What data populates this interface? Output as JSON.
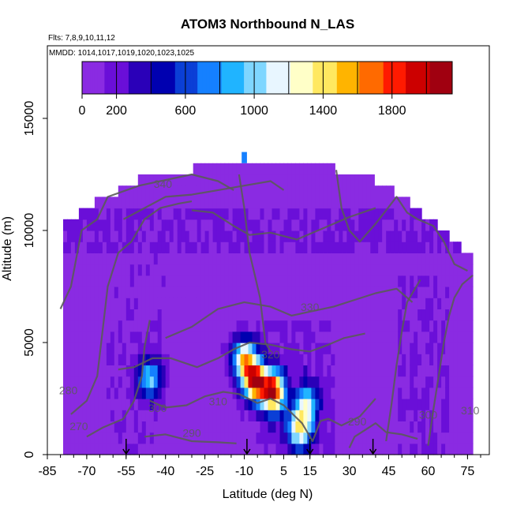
{
  "chart_data": {
    "type": "heatmap",
    "title": "ATOM3 Northbound N_LAS",
    "flights_label": "Flts: 7,8,9,10,11,12",
    "dates_label": "MMDD: 1014,1017,1019,1020,1023,1025",
    "xlabel": "Latitude (deg N)",
    "ylabel": "Altitude (m)",
    "xlim": [
      -85,
      80
    ],
    "ylim": [
      0,
      17500
    ],
    "x_ticks": [
      -85,
      -70,
      -55,
      -40,
      -25,
      -10,
      5,
      15,
      30,
      45,
      60,
      75
    ],
    "y_ticks": [
      0,
      5000,
      10000,
      15000
    ],
    "colorbar": {
      "range": [
        0,
        2150
      ],
      "ticks": [
        0,
        200,
        600,
        1000,
        1400,
        1800
      ],
      "colors": [
        "#8a2be2",
        "#6a0fd8",
        "#2a00b8",
        "#0000b0",
        "#0b3fd6",
        "#1580ff",
        "#20b4ff",
        "#7fd6ff",
        "#e8f6ff",
        "#ffffc8",
        "#ffe860",
        "#ffb400",
        "#ff6a00",
        "#ff1a00",
        "#cc0000",
        "#a00010"
      ]
    },
    "theta_contour_labels": [
      "270",
      "280",
      "290",
      "300",
      "310",
      "320",
      "330",
      "340",
      "290",
      "300",
      "310"
    ],
    "arrow_latitudes": [
      -55,
      -9,
      15,
      39
    ],
    "altitude_envelope": [
      {
        "lat": -79,
        "alt": 0
      },
      {
        "lat": -79,
        "alt": 10500
      },
      {
        "lat": -73,
        "alt": 10500
      },
      {
        "lat": -73,
        "alt": 11000
      },
      {
        "lat": -67,
        "alt": 11000
      },
      {
        "lat": -67,
        "alt": 11500
      },
      {
        "lat": -58,
        "alt": 11500
      },
      {
        "lat": -58,
        "alt": 12000
      },
      {
        "lat": -50,
        "alt": 12000
      },
      {
        "lat": -50,
        "alt": 12500
      },
      {
        "lat": -30,
        "alt": 12500
      },
      {
        "lat": -30,
        "alt": 13000
      },
      {
        "lat": 25,
        "alt": 13000
      },
      {
        "lat": 25,
        "alt": 12500
      },
      {
        "lat": 40,
        "alt": 12500
      },
      {
        "lat": 40,
        "alt": 12000
      },
      {
        "lat": 47,
        "alt": 12000
      },
      {
        "lat": 47,
        "alt": 11500
      },
      {
        "lat": 53,
        "alt": 11500
      },
      {
        "lat": 53,
        "alt": 11000
      },
      {
        "lat": 58,
        "alt": 11000
      },
      {
        "lat": 58,
        "alt": 10500
      },
      {
        "lat": 63,
        "alt": 10500
      },
      {
        "lat": 63,
        "alt": 10000
      },
      {
        "lat": 68,
        "alt": 10000
      },
      {
        "lat": 68,
        "alt": 9500
      },
      {
        "lat": 72,
        "alt": 9500
      },
      {
        "lat": 72,
        "alt": 9000
      },
      {
        "lat": 77,
        "alt": 9000
      },
      {
        "lat": 77,
        "alt": 0
      }
    ],
    "tower": {
      "lat_min": -11,
      "lat_max": -9,
      "alt_min": 13000,
      "alt_max": 13500
    },
    "hotspots": [
      {
        "lat": -10,
        "alt": 4300,
        "value": 1300
      },
      {
        "lat": -6,
        "alt": 3300,
        "value": 1800
      },
      {
        "lat": 1,
        "alt": 2800,
        "value": 1900
      },
      {
        "lat": 11,
        "alt": 1200,
        "value": 1250
      },
      {
        "lat": -46,
        "alt": 3400,
        "value": 850
      },
      {
        "lat": 14,
        "alt": 2300,
        "value": 800
      }
    ]
  }
}
